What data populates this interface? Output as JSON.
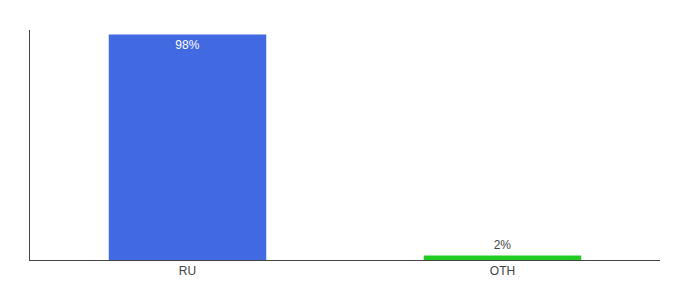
{
  "chart_data": {
    "type": "bar",
    "categories": [
      "RU",
      "OTH"
    ],
    "values": [
      98,
      2
    ],
    "value_labels": [
      "98%",
      "2%"
    ],
    "data_labels": true,
    "colors": [
      "#4169e1",
      "#22cc22"
    ],
    "ylim": [
      0,
      100
    ],
    "grid": false,
    "tick_labels": "x"
  }
}
